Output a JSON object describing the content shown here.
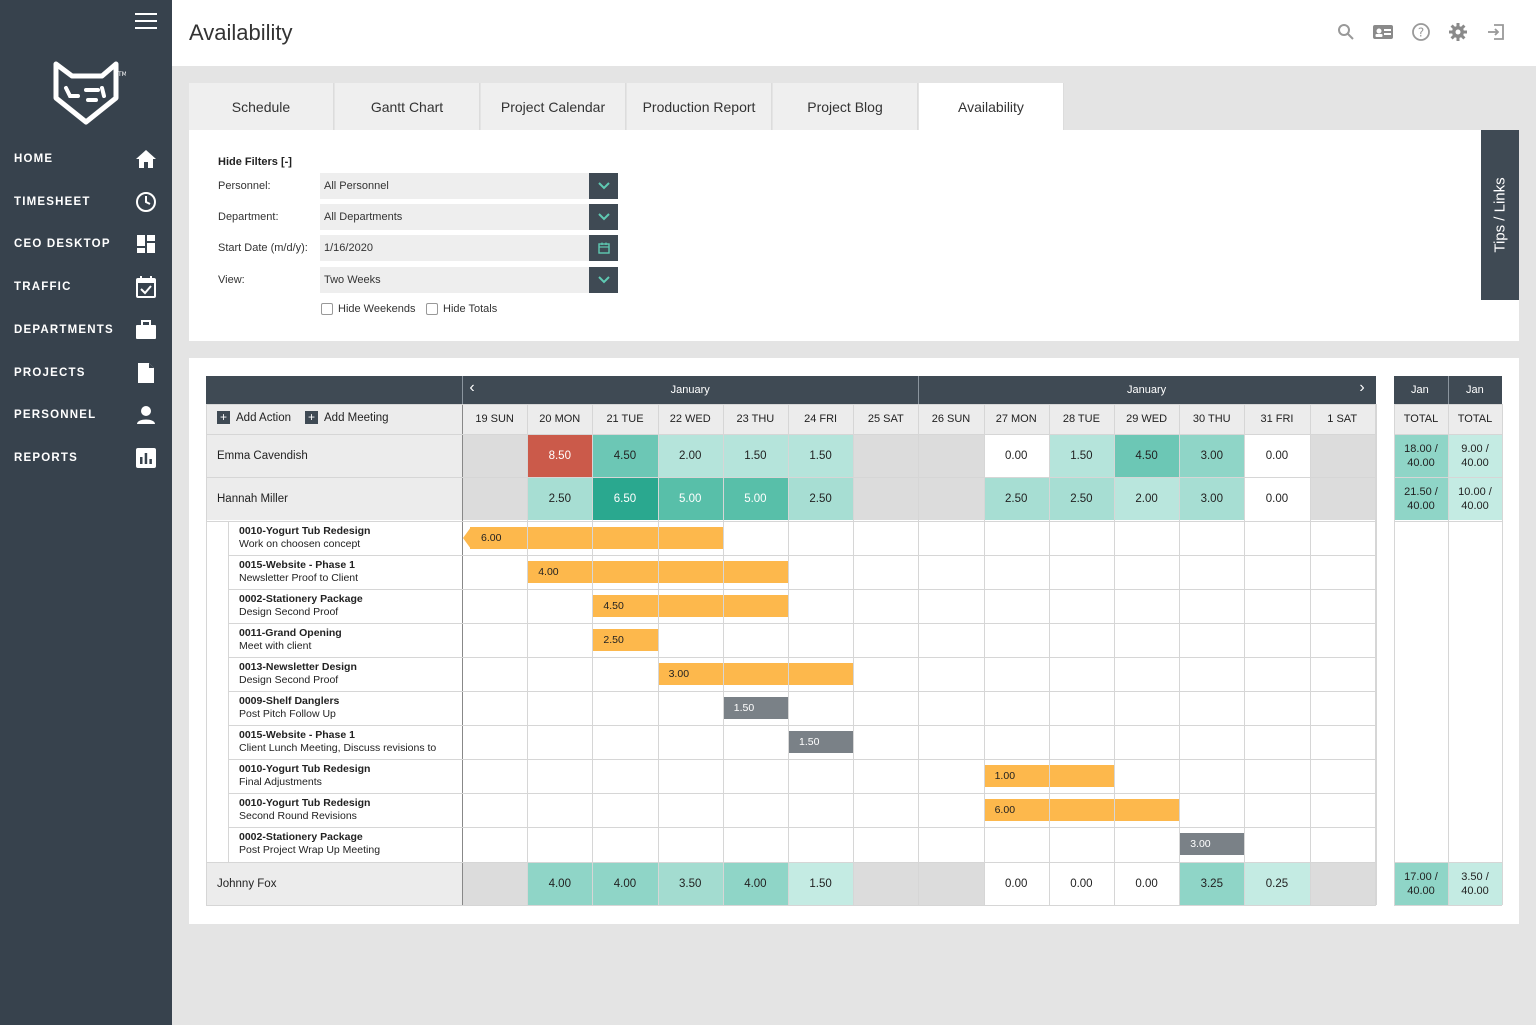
{
  "sidebar": {
    "items": [
      {
        "label": "HOME",
        "icon": "home-icon"
      },
      {
        "label": "TIMESHEET",
        "icon": "clock-icon"
      },
      {
        "label": "CEO DESKTOP",
        "icon": "dashboard-icon"
      },
      {
        "label": "TRAFFIC",
        "icon": "calendar-check-icon"
      },
      {
        "label": "DEPARTMENTS",
        "icon": "briefcase-icon"
      },
      {
        "label": "PROJECTS",
        "icon": "document-icon"
      },
      {
        "label": "PERSONNEL",
        "icon": "person-icon"
      },
      {
        "label": "REPORTS",
        "icon": "bar-chart-icon"
      }
    ]
  },
  "header": {
    "title": "Availability",
    "icons": [
      "search-icon",
      "contact-card-icon",
      "help-icon",
      "gear-icon",
      "sign-out-icon"
    ]
  },
  "tabs": [
    "Schedule",
    "Gantt Chart",
    "Project Calendar",
    "Production Report",
    "Project Blog",
    "Availability"
  ],
  "active_tab": "Availability",
  "filters": {
    "hide_label": "Hide Filters [-]",
    "personnel": {
      "label": "Personnel:",
      "value": "All Personnel"
    },
    "department": {
      "label": "Department:",
      "value": "All Departments"
    },
    "start_date": {
      "label": "Start Date (m/d/y):",
      "value": "1/16/2020"
    },
    "view": {
      "label": "View:",
      "value": "Two Weeks"
    },
    "hide_weekends": "Hide Weekends",
    "hide_totals": "Hide Totals"
  },
  "tips_label": "Tips / Links",
  "grid": {
    "month_left": "January",
    "month_right": "January",
    "prev_arrow": "‹",
    "next_arrow": "›",
    "add_action": "Add Action",
    "add_meeting": "Add Meeting",
    "days": [
      "19 SUN",
      "20 MON",
      "21 TUE",
      "22 WED",
      "23 THU",
      "24 FRI",
      "25 SAT",
      "26 SUN",
      "27 MON",
      "28 TUE",
      "29 WED",
      "30 THU",
      "31 FRI",
      "1 SAT"
    ],
    "totals_headers": [
      {
        "month": "Jan",
        "label": "TOTAL"
      },
      {
        "month": "Jan",
        "label": "TOTAL"
      }
    ],
    "people": [
      {
        "name": "Emma Cavendish",
        "hours": [
          "",
          "8.50",
          "4.50",
          "2.00",
          "1.50",
          "1.50",
          "",
          "",
          "0.00",
          "1.50",
          "4.50",
          "3.00",
          "0.00",
          ""
        ],
        "colors": [
          "#dcdcdc",
          "#cb5a4a",
          "#6cc7b5",
          "#b5e4db",
          "#b5e4db",
          "#b5e4db",
          "#dcdcdc",
          "#dcdcdc",
          "#ffffff",
          "#b5e4db",
          "#6cc7b5",
          "#8fd5c7",
          "#ffffff",
          "#dcdcdc"
        ],
        "totals": [
          "18.00 / 40.00",
          "9.00 / 40.00"
        ]
      },
      {
        "name": "Hannah Miller",
        "hours": [
          "",
          "2.50",
          "6.50",
          "5.00",
          "5.00",
          "2.50",
          "",
          "",
          "2.50",
          "2.50",
          "2.00",
          "3.00",
          "0.00",
          ""
        ],
        "colors": [
          "#dcdcdc",
          "#a7ded3",
          "#2aa88f",
          "#58bfa9",
          "#58bfa9",
          "#a7ded3",
          "#dcdcdc",
          "#dcdcdc",
          "#a7ded3",
          "#a7ded3",
          "#b9e6dd",
          "#a7ded3",
          "#ffffff",
          "#dcdcdc"
        ],
        "totals": [
          "21.50 / 40.00",
          "10.00 / 40.00"
        ]
      },
      {
        "name": "Johnny Fox",
        "hours": [
          "",
          "4.00",
          "4.00",
          "3.50",
          "4.00",
          "1.50",
          "",
          "",
          "0.00",
          "0.00",
          "0.00",
          "3.25",
          "0.25",
          ""
        ],
        "colors": [
          "#dcdcdc",
          "#8fd5c7",
          "#8fd5c7",
          "#a3dcd0",
          "#8fd5c7",
          "#c4ebe3",
          "#dcdcdc",
          "#dcdcdc",
          "#ffffff",
          "#ffffff",
          "#ffffff",
          "#8fd5c7",
          "#c4ebe3",
          "#dcdcdc"
        ],
        "totals": [
          "17.00 / 40.00",
          "3.50 / 40.00"
        ]
      }
    ],
    "tasks": [
      {
        "project": "0010-Yogurt Tub Redesign",
        "desc": "Work on choosen concept",
        "hours": "6.00",
        "start": 0,
        "span": 4,
        "kind": "orange"
      },
      {
        "project": "0015-Website - Phase 1",
        "desc": "Newsletter Proof to Client",
        "hours": "4.00",
        "start": 1,
        "span": 4,
        "kind": "orange"
      },
      {
        "project": "0002-Stationery Package",
        "desc": "Design Second Proof",
        "hours": "4.50",
        "start": 2,
        "span": 3,
        "kind": "orange"
      },
      {
        "project": "0011-Grand Opening",
        "desc": "Meet with client",
        "hours": "2.50",
        "start": 2,
        "span": 1,
        "kind": "orange"
      },
      {
        "project": "0013-Newsletter Design",
        "desc": "Design Second Proof",
        "hours": "3.00",
        "start": 3,
        "span": 3,
        "kind": "orange"
      },
      {
        "project": "0009-Shelf Danglers",
        "desc": "Post Pitch Follow Up",
        "hours": "1.50",
        "start": 4,
        "span": 1,
        "kind": "grey"
      },
      {
        "project": "0015-Website - Phase 1",
        "desc": "Client Lunch Meeting, Discuss revisions to",
        "hours": "1.50",
        "start": 5,
        "span": 1,
        "kind": "grey"
      },
      {
        "project": "0010-Yogurt Tub Redesign",
        "desc": "Final Adjustments",
        "hours": "1.00",
        "start": 8,
        "span": 2,
        "kind": "orange"
      },
      {
        "project": "0010-Yogurt Tub Redesign",
        "desc": "Second Round Revisions",
        "hours": "6.00",
        "start": 8,
        "span": 3,
        "kind": "orange"
      },
      {
        "project": "0002-Stationery Package",
        "desc": "Post Project Wrap Up Meeting",
        "hours": "3.00",
        "start": 11,
        "span": 1,
        "kind": "grey"
      }
    ]
  }
}
